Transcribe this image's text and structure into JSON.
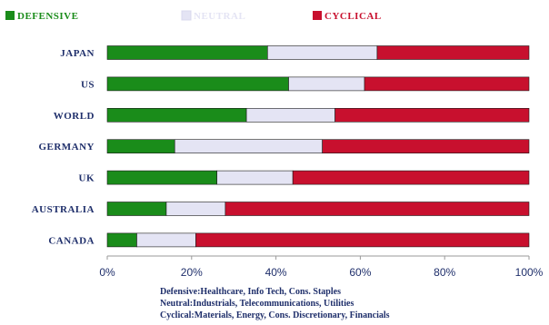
{
  "chart_data": {
    "type": "bar",
    "orientation": "horizontal",
    "stacked": true,
    "categories": [
      "JAPAN",
      "US",
      "WORLD",
      "GERMANY",
      "UK",
      "AUSTRALIA",
      "CANADA"
    ],
    "series": [
      {
        "name": "DEFENSIVE",
        "color": "#1a8c1a",
        "values": [
          38,
          43,
          33,
          16,
          26,
          14,
          7
        ]
      },
      {
        "name": "NEUTRAL",
        "color": "#e4e4f4",
        "values": [
          26,
          18,
          21,
          35,
          18,
          14,
          14
        ]
      },
      {
        "name": "CYCLICAL",
        "color": "#c8102e",
        "values": [
          36,
          39,
          46,
          49,
          56,
          72,
          79
        ]
      }
    ],
    "xlim": [
      0,
      100
    ],
    "x_ticks": [
      "0%",
      "20%",
      "40%",
      "60%",
      "80%",
      "100%"
    ],
    "legend_position": "top",
    "grid": false,
    "notes": [
      "Defensive:Healthcare, Info Tech, Cons. Staples",
      "Neutral:Industrials, Telecommunications, Utilities",
      "Cyclical:Materials, Energy, Cons. Discretionary, Financials"
    ]
  }
}
